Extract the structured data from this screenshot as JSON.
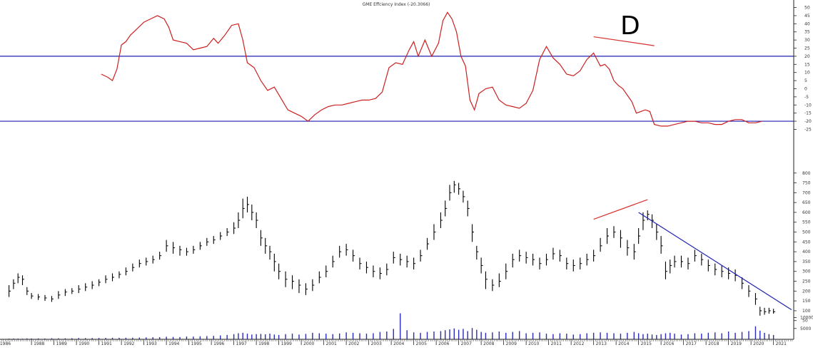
{
  "chart_data": [
    {
      "type": "line",
      "title": "GME Effciency Index (-20.3066)",
      "yticks": [
        50,
        45,
        40,
        35,
        30,
        25,
        20,
        15,
        10,
        5,
        0,
        -5,
        -10,
        -15,
        -20,
        -25
      ],
      "ylim": [
        -27,
        52
      ],
      "reference_lines": [
        {
          "y": 20,
          "color": "#1f1fb0"
        },
        {
          "y": -20,
          "color": "#1f1fb0"
        }
      ],
      "annotation_text": "D",
      "divergence_line": {
        "from": {
          "x": 2013.0,
          "y": 32
        },
        "to": {
          "x": 2015.7,
          "y": 26.5
        },
        "color": "#d63030"
      },
      "series": [
        {
          "color": "#cc2020",
          "x": [
            1991.1,
            1991.4,
            1991.6,
            1991.8,
            1992.0,
            1992.2,
            1992.4,
            1992.7,
            1993.0,
            1993.3,
            1993.6,
            1993.9,
            1994.1,
            1994.3,
            1994.6,
            1994.9,
            1995.2,
            1995.5,
            1995.8,
            1996.1,
            1996.3,
            1996.6,
            1996.9,
            1997.2,
            1997.4,
            1997.6,
            1997.9,
            1998.2,
            1998.5,
            1998.8,
            1999.1,
            1999.4,
            1999.7,
            2000.0,
            2000.3,
            2000.6,
            2000.9,
            2001.2,
            2001.5,
            2001.8,
            2002.1,
            2002.4,
            2002.7,
            2003.0,
            2003.3,
            2003.6,
            2003.9,
            2004.2,
            2004.5,
            2004.8,
            2005.0,
            2005.2,
            2005.5,
            2005.8,
            2006.1,
            2006.3,
            2006.5,
            2006.7,
            2006.9,
            2007.1,
            2007.3,
            2007.5,
            2007.7,
            2007.9,
            2008.2,
            2008.5,
            2008.8,
            2009.1,
            2009.4,
            2009.7,
            2010.0,
            2010.3,
            2010.6,
            2010.9,
            2011.2,
            2011.5,
            2011.8,
            2012.1,
            2012.4,
            2012.7,
            2013.0,
            2013.3,
            2013.5,
            2013.7,
            2013.9,
            2014.1,
            2014.3,
            2014.5,
            2014.7,
            2014.9,
            2015.1,
            2015.3,
            2015.5,
            2015.7,
            2016.0,
            2016.3,
            2016.6,
            2016.9,
            2017.2,
            2017.5,
            2017.8,
            2018.1,
            2018.4,
            2018.7,
            2019.0,
            2019.3,
            2019.6,
            2019.9,
            2020.2,
            2020.5
          ],
          "values": [
            9,
            7,
            5,
            12,
            27,
            29,
            33,
            37,
            41,
            43,
            45,
            43,
            38,
            30,
            29,
            28,
            24,
            25,
            26,
            31,
            28,
            33,
            39,
            40,
            30,
            16,
            13,
            5,
            -1,
            1,
            -6,
            -13,
            -15,
            -17,
            -20,
            -16,
            -13,
            -11,
            -10,
            -10,
            -9,
            -8,
            -7,
            -7,
            -6,
            -2,
            13,
            16,
            15,
            24,
            29,
            20,
            30,
            20,
            28,
            42,
            47,
            43,
            35,
            20,
            14,
            -7,
            -13,
            -3,
            0,
            1,
            -7,
            -10,
            -11,
            -12,
            -9,
            -1,
            18,
            26,
            19,
            15,
            9,
            8,
            11,
            18,
            22,
            14,
            15,
            12,
            5,
            2,
            0,
            -4,
            -8,
            -15,
            -14,
            -13,
            -14,
            -22,
            -23,
            -23,
            -22,
            -21,
            -20,
            -20,
            -21,
            -21,
            -22,
            -22,
            -20,
            -19,
            -19,
            -21,
            -21,
            -20
          ]
        }
      ]
    },
    {
      "type": "ohlc",
      "yticks": [
        800,
        750,
        700,
        650,
        600,
        550,
        500,
        450,
        400,
        350,
        300,
        250,
        200,
        150,
        100,
        50
      ],
      "ylim": [
        20,
        810
      ],
      "color": "#000000",
      "divergence_line": {
        "from": {
          "x": 2013.0,
          "y": 565
        },
        "to": {
          "x": 2015.4,
          "y": 665
        },
        "color": "#d63030"
      },
      "trend_line": {
        "from": {
          "x": 2015.0,
          "y": 600
        },
        "to": {
          "x": 2021.8,
          "y": 105
        },
        "color": "#1f1fb0"
      },
      "x": [
        1987.0,
        1987.2,
        1987.4,
        1987.6,
        1987.8,
        1988.0,
        1988.3,
        1988.6,
        1988.9,
        1989.2,
        1989.5,
        1989.8,
        1990.1,
        1990.4,
        1990.7,
        1991.0,
        1991.3,
        1991.6,
        1991.9,
        1992.2,
        1992.5,
        1992.8,
        1993.1,
        1993.4,
        1993.7,
        1994.0,
        1994.3,
        1994.6,
        1994.9,
        1995.2,
        1995.5,
        1995.8,
        1996.1,
        1996.4,
        1996.7,
        1997.0,
        1997.2,
        1997.4,
        1997.6,
        1997.8,
        1998.0,
        1998.2,
        1998.4,
        1998.6,
        1998.8,
        1999.0,
        1999.3,
        1999.6,
        1999.9,
        2000.2,
        2000.5,
        2000.8,
        2001.1,
        2001.4,
        2001.7,
        2002.0,
        2002.3,
        2002.6,
        2002.9,
        2003.2,
        2003.5,
        2003.8,
        2004.1,
        2004.4,
        2004.7,
        2005.0,
        2005.3,
        2005.6,
        2005.9,
        2006.2,
        2006.4,
        2006.6,
        2006.8,
        2007.0,
        2007.2,
        2007.4,
        2007.6,
        2007.8,
        2008.0,
        2008.2,
        2008.5,
        2008.8,
        2009.1,
        2009.4,
        2009.7,
        2010.0,
        2010.3,
        2010.6,
        2010.9,
        2011.2,
        2011.5,
        2011.8,
        2012.1,
        2012.4,
        2012.7,
        2013.0,
        2013.3,
        2013.6,
        2013.9,
        2014.2,
        2014.5,
        2014.8,
        2015.0,
        2015.2,
        2015.4,
        2015.6,
        2015.8,
        2016.0,
        2016.2,
        2016.4,
        2016.6,
        2016.9,
        2017.2,
        2017.5,
        2017.8,
        2018.1,
        2018.4,
        2018.7,
        2019.0,
        2019.3,
        2019.6,
        2019.9,
        2020.2,
        2020.4,
        2020.6,
        2020.8,
        2021.0
      ],
      "close": [
        200,
        240,
        270,
        260,
        200,
        175,
        170,
        165,
        160,
        180,
        195,
        200,
        210,
        220,
        230,
        245,
        260,
        270,
        285,
        300,
        320,
        340,
        350,
        360,
        380,
        430,
        420,
        410,
        400,
        410,
        430,
        450,
        460,
        480,
        500,
        520,
        560,
        620,
        640,
        600,
        560,
        470,
        430,
        400,
        350,
        300,
        260,
        250,
        230,
        210,
        230,
        270,
        300,
        350,
        400,
        410,
        380,
        340,
        320,
        300,
        290,
        310,
        370,
        360,
        350,
        340,
        380,
        440,
        500,
        560,
        620,
        700,
        740,
        720,
        680,
        620,
        500,
        400,
        330,
        260,
        230,
        250,
        300,
        360,
        380,
        370,
        360,
        340,
        360,
        390,
        380,
        340,
        330,
        340,
        360,
        380,
        430,
        480,
        500,
        470,
        420,
        400,
        480,
        560,
        590,
        560,
        500,
        430,
        300,
        330,
        350,
        350,
        340,
        380,
        360,
        330,
        310,
        300,
        290,
        280,
        240,
        200,
        160,
        100,
        95,
        100,
        95
      ],
      "high": [
        230,
        260,
        290,
        280,
        220,
        190,
        185,
        180,
        175,
        200,
        210,
        215,
        230,
        240,
        250,
        260,
        280,
        290,
        300,
        320,
        340,
        360,
        370,
        380,
        400,
        460,
        450,
        430,
        420,
        430,
        450,
        470,
        480,
        500,
        520,
        550,
        600,
        670,
        680,
        640,
        600,
        510,
        470,
        430,
        390,
        340,
        300,
        280,
        260,
        240,
        260,
        300,
        330,
        380,
        430,
        440,
        410,
        370,
        350,
        330,
        320,
        340,
        400,
        390,
        380,
        370,
        410,
        470,
        540,
        600,
        660,
        740,
        760,
        750,
        710,
        660,
        540,
        430,
        370,
        300,
        260,
        290,
        340,
        390,
        410,
        400,
        390,
        370,
        390,
        420,
        410,
        370,
        360,
        370,
        390,
        410,
        470,
        520,
        530,
        510,
        460,
        440,
        520,
        600,
        610,
        590,
        540,
        480,
        350,
        360,
        380,
        380,
        370,
        410,
        390,
        360,
        340,
        330,
        320,
        310,
        270,
        230,
        190,
        120,
        115,
        115,
        110
      ],
      "low": [
        170,
        210,
        240,
        230,
        180,
        160,
        155,
        150,
        145,
        160,
        175,
        185,
        190,
        200,
        210,
        225,
        240,
        250,
        265,
        280,
        300,
        320,
        330,
        340,
        360,
        400,
        390,
        380,
        380,
        390,
        410,
        430,
        440,
        460,
        480,
        490,
        520,
        570,
        600,
        560,
        520,
        430,
        390,
        360,
        300,
        260,
        220,
        210,
        190,
        180,
        200,
        240,
        270,
        320,
        370,
        380,
        350,
        310,
        290,
        270,
        260,
        280,
        340,
        330,
        320,
        310,
        350,
        410,
        460,
        520,
        580,
        660,
        700,
        690,
        650,
        580,
        450,
        360,
        290,
        210,
        200,
        220,
        260,
        320,
        350,
        340,
        330,
        310,
        330,
        360,
        350,
        310,
        300,
        310,
        330,
        350,
        400,
        440,
        470,
        420,
        380,
        360,
        440,
        510,
        560,
        520,
        460,
        390,
        260,
        290,
        320,
        320,
        310,
        350,
        330,
        300,
        280,
        270,
        260,
        250,
        210,
        170,
        130,
        75,
        80,
        85,
        85
      ],
      "volume": [
        300,
        350,
        320,
        280,
        400,
        380,
        420,
        360,
        500,
        480,
        450,
        520,
        600,
        550,
        580,
        620,
        650,
        700,
        680,
        720,
        750,
        800,
        900,
        950,
        1000,
        1200,
        1100,
        1050,
        1300,
        1250,
        1400,
        1500,
        1600,
        1800,
        2000,
        2400,
        2800,
        3000,
        2600,
        2200,
        2400,
        2500,
        2300,
        2600,
        2200,
        2000,
        2400,
        2600,
        2200,
        2500,
        3000,
        2800,
        2600,
        2400,
        2700,
        3200,
        3000,
        2800,
        2600,
        2800,
        3400,
        3600,
        4800,
        12000,
        4200,
        3200,
        3000,
        3400,
        3600,
        3800,
        4200,
        4600,
        5000,
        4400,
        4800,
        3800,
        5200,
        4400,
        3400,
        3000,
        3200,
        3600,
        3000,
        3400,
        3800,
        2800,
        3000,
        3200,
        2600,
        2400,
        2800,
        2600,
        2200,
        2400,
        2800,
        3000,
        3200,
        3000,
        2800,
        2600,
        3000,
        3400,
        2800,
        2400,
        2600,
        2200,
        2000,
        2400,
        2800,
        3000,
        2600,
        2200,
        2400,
        2800,
        2600,
        3000,
        3200,
        2800,
        3600,
        3000,
        3400,
        3800,
        6000,
        4000,
        3000,
        2400,
        2000
      ],
      "volume_yticks": [
        10000,
        5000
      ]
    }
  ],
  "x_axis": {
    "tick_labels": [
      "1986",
      "1988",
      "1989",
      "1990",
      "1991",
      "1992",
      "1993",
      "1994",
      "1995",
      "1996",
      "1997",
      "1998",
      "1999",
      "2000",
      "2001",
      "2002",
      "2003",
      "2004",
      "2005",
      "2006",
      "2007",
      "2008",
      "2009",
      "2010",
      "2011",
      "2012",
      "2013",
      "2014",
      "2015",
      "2016",
      "2017",
      "2018",
      "2019",
      "2020",
      "2021"
    ],
    "tick_years": [
      1986.5,
      1988,
      1989,
      1990,
      1991,
      1992,
      1993,
      1994,
      1995,
      1996,
      1997,
      1998,
      1999,
      2000,
      2001,
      2002,
      2003,
      2004,
      2005,
      2006,
      2007,
      2008,
      2009,
      2010,
      2011,
      2012,
      2013,
      2014,
      2015,
      2016,
      2017,
      2018,
      2019,
      2020,
      2021
    ]
  }
}
